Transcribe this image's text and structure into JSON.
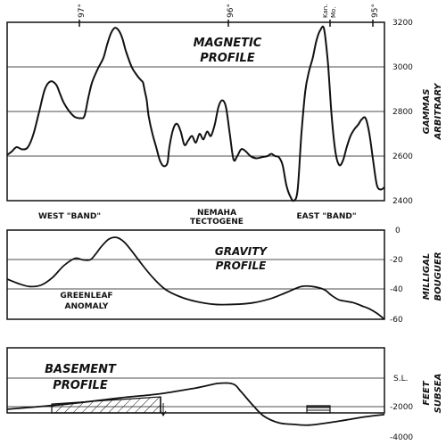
{
  "top_ticks": {
    "lon_97": "97°",
    "lon_96": "96°",
    "kan": "Kan.",
    "mo": "Mo.",
    "lon_95": "95°"
  },
  "labels": {
    "west_band": "WEST \"BAND\"",
    "nemaha_1": "NEMAHA",
    "nemaha_2": "TECTOGENE",
    "east_band": "EAST \"BAND\"",
    "greenleaf_1": "GREENLEAF",
    "greenleaf_2": "ANOMALY"
  },
  "chart_data": [
    {
      "type": "line",
      "title_line1": "MAGNETIC",
      "title_line2": "PROFILE",
      "ylabel_line1": "GAMMAS",
      "ylabel_line2": "ARBITRARY",
      "ylim": [
        2400,
        3200
      ],
      "yticks": [
        "2400",
        "2600",
        "2800",
        "3000",
        "3200"
      ],
      "grid": true,
      "x": [
        0,
        0.012,
        0.025,
        0.04,
        0.055,
        0.07,
        0.085,
        0.1,
        0.115,
        0.13,
        0.14,
        0.15,
        0.165,
        0.18,
        0.195,
        0.205,
        0.215,
        0.225,
        0.24,
        0.255,
        0.265,
        0.275,
        0.285,
        0.295,
        0.305,
        0.315,
        0.33,
        0.345,
        0.355,
        0.36,
        0.365,
        0.37,
        0.375,
        0.385,
        0.395,
        0.405,
        0.415,
        0.425,
        0.43,
        0.44,
        0.45,
        0.46,
        0.47,
        0.48,
        0.49,
        0.5,
        0.51,
        0.52,
        0.53,
        0.54,
        0.55,
        0.56,
        0.57,
        0.58,
        0.59,
        0.6,
        0.61,
        0.62,
        0.63,
        0.645,
        0.66,
        0.675,
        0.69,
        0.7,
        0.71,
        0.72,
        0.73,
        0.74,
        0.75,
        0.76,
        0.77,
        0.78,
        0.79,
        0.8,
        0.81,
        0.82,
        0.83,
        0.84,
        0.85,
        0.86,
        0.87,
        0.88,
        0.89,
        0.9,
        0.91,
        0.92,
        0.93,
        0.94,
        0.95,
        0.96,
        0.97,
        0.98,
        0.99,
        1.0
      ],
      "y": [
        2605,
        2620,
        2640,
        2630,
        2640,
        2700,
        2800,
        2900,
        2935,
        2920,
        2880,
        2840,
        2800,
        2775,
        2770,
        2780,
        2860,
        2930,
        2990,
        3040,
        3100,
        3150,
        3175,
        3165,
        3130,
        3070,
        3000,
        2960,
        2940,
        2930,
        2890,
        2850,
        2780,
        2700,
        2640,
        2580,
        2555,
        2570,
        2640,
        2720,
        2745,
        2710,
        2650,
        2670,
        2690,
        2660,
        2700,
        2675,
        2710,
        2690,
        2740,
        2820,
        2850,
        2820,
        2700,
        2585,
        2600,
        2630,
        2625,
        2600,
        2590,
        2595,
        2600,
        2610,
        2600,
        2595,
        2560,
        2470,
        2420,
        2400,
        2450,
        2700,
        2890,
        2980,
        3040,
        3120,
        3165,
        3170,
        3020,
        2780,
        2620,
        2560,
        2580,
        2640,
        2690,
        2720,
        2740,
        2765,
        2770,
        2700,
        2580,
        2470,
        2450,
        2460
      ]
    },
    {
      "type": "line",
      "title_line1": "GRAVITY",
      "title_line2": "PROFILE",
      "ylabel_line1": "MILLIGAL",
      "ylabel_line2": "BOUGUER",
      "ylim": [
        -60,
        0
      ],
      "yticks": [
        "0",
        "-20",
        "-40",
        "-60"
      ],
      "grid": true,
      "x": [
        0,
        0.03,
        0.06,
        0.09,
        0.12,
        0.15,
        0.18,
        0.2,
        0.22,
        0.235,
        0.25,
        0.27,
        0.29,
        0.31,
        0.33,
        0.36,
        0.39,
        0.42,
        0.46,
        0.5,
        0.55,
        0.6,
        0.65,
        0.7,
        0.74,
        0.78,
        0.81,
        0.84,
        0.86,
        0.88,
        0.9,
        0.92,
        0.94,
        0.96,
        0.98,
        1.0
      ],
      "y": [
        -33,
        -36,
        -38,
        -37,
        -32,
        -24,
        -19,
        -20,
        -20,
        -16,
        -11,
        -6,
        -5,
        -8,
        -14,
        -24,
        -33,
        -40,
        -45,
        -48,
        -50,
        -50,
        -49,
        -46,
        -42,
        -38,
        -38,
        -40,
        -44,
        -47,
        -48,
        -49,
        -51,
        -53,
        -56,
        -60
      ]
    },
    {
      "type": "area",
      "title_line1": "BASEMENT",
      "title_line2": "PROFILE",
      "ylabel_line1": "FEET",
      "ylabel_line2": "SUBSEA",
      "ylim": [
        -4000,
        0
      ],
      "yticks": [
        "S.L.",
        "-2000",
        "-4000"
      ],
      "grid": true,
      "x": [
        0,
        0.1,
        0.2,
        0.3,
        0.4,
        0.5,
        0.56,
        0.6,
        0.62,
        0.65,
        0.68,
        0.72,
        0.76,
        0.8,
        0.85,
        0.9,
        0.95,
        1.0
      ],
      "y": [
        -2050,
        -1850,
        -1600,
        -1300,
        -1050,
        -650,
        -350,
        -400,
        -900,
        -1750,
        -2500,
        -2950,
        -3050,
        -3100,
        -2950,
        -2750,
        -2550,
        -2400
      ],
      "shaded_regions": [
        "west hatched block",
        "east horizontally hatched block"
      ]
    }
  ]
}
